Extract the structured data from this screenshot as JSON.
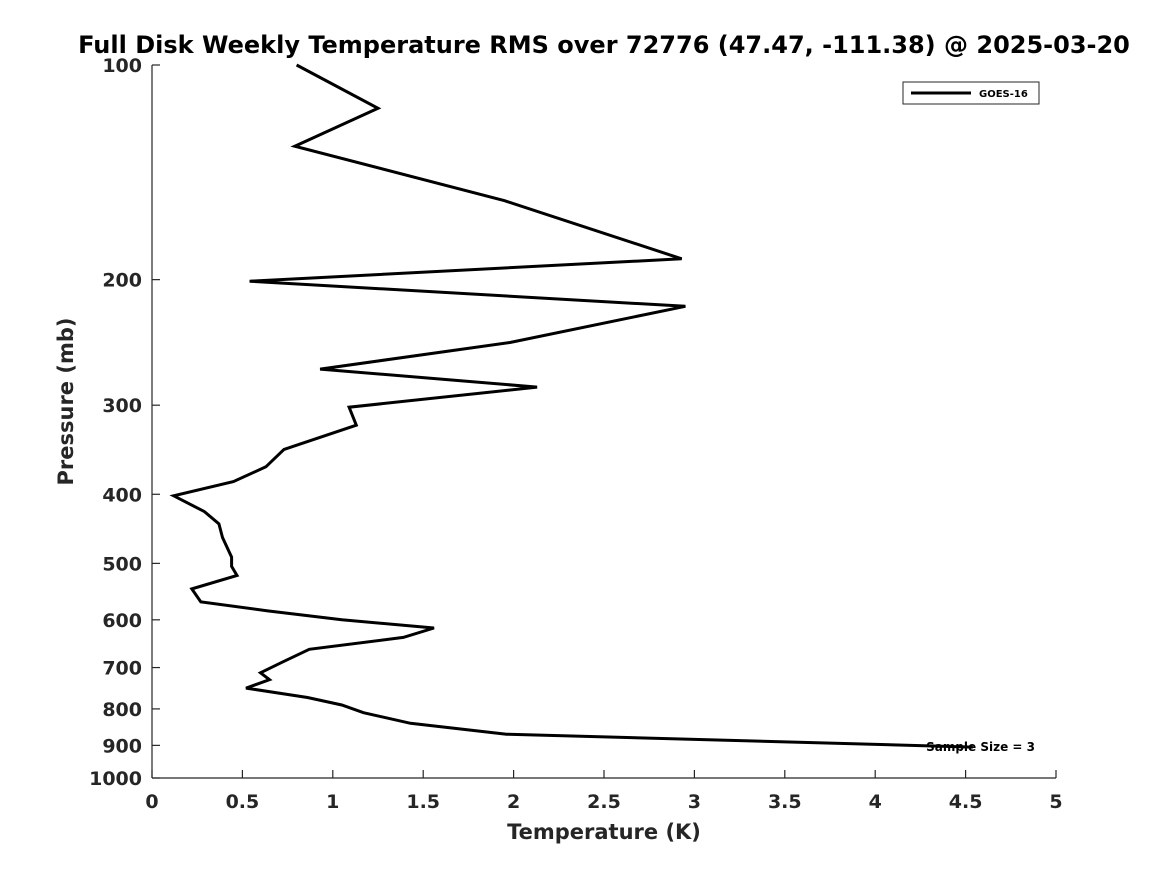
{
  "chart_data": {
    "type": "line",
    "title": "Full Disk Weekly Temperature RMS over 72776 (47.47, -111.38) @ 2025-03-20",
    "xlabel": "Temperature (K)",
    "ylabel": "Pressure (mb)",
    "xlim": [
      0,
      5
    ],
    "ylim": [
      1000,
      100
    ],
    "y_scale": "log",
    "y_reversed": true,
    "x_ticks": [
      0,
      0.5,
      1,
      1.5,
      2,
      2.5,
      3,
      3.5,
      4,
      4.5,
      5
    ],
    "x_tick_labels": [
      "0",
      "0.5",
      "1",
      "1.5",
      "2",
      "2.5",
      "3",
      "3.5",
      "4",
      "4.5",
      "5"
    ],
    "y_ticks": [
      100,
      200,
      300,
      400,
      500,
      600,
      700,
      800,
      900,
      1000
    ],
    "y_tick_labels": [
      "100",
      "200",
      "300",
      "400",
      "500",
      "600",
      "700",
      "800",
      "900",
      "1000"
    ],
    "grid": false,
    "legend_position": "top-right",
    "series": [
      {
        "name": "GOES-16",
        "color": "#000000",
        "x": [
          0.8,
          1.25,
          0.79,
          1.95,
          2.93,
          0.54,
          2.95,
          1.98,
          0.93,
          2.13,
          1.09,
          1.13,
          0.73,
          0.63,
          0.45,
          0.12,
          0.29,
          0.37,
          0.39,
          0.44,
          0.44,
          0.47,
          0.22,
          0.27,
          0.64,
          1.05,
          1.56,
          1.39,
          0.87,
          0.72,
          0.6,
          0.65,
          0.52,
          0.86,
          1.05,
          1.17,
          1.43,
          1.96,
          4.54
        ],
        "y": [
          100,
          115,
          130,
          155,
          187,
          201,
          218,
          245,
          267,
          283,
          302,
          320,
          346,
          366,
          384,
          402,
          423,
          440,
          460,
          490,
          505,
          520,
          543,
          566,
          583,
          600,
          616,
          635,
          660,
          688,
          712,
          728,
          748,
          771,
          790,
          810,
          838,
          868,
          905
        ]
      }
    ],
    "annotations": [
      {
        "text": "Sample Size = 3"
      }
    ]
  },
  "colors": {
    "axis": "#262626",
    "series": "#000000",
    "background": "#ffffff"
  }
}
